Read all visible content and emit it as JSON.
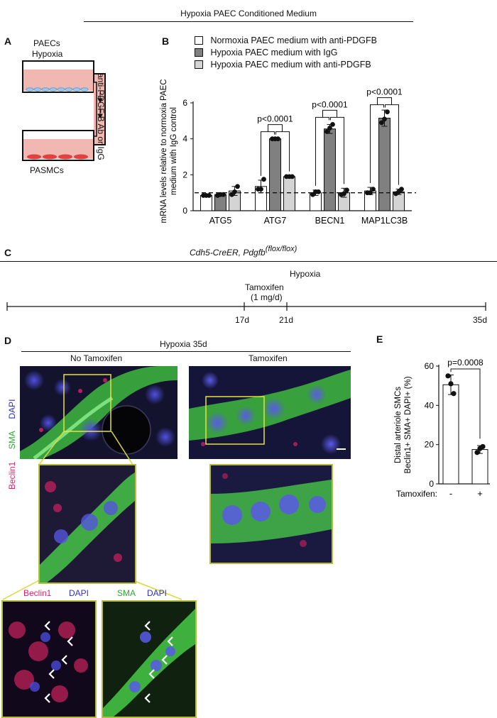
{
  "header_title": "Hypoxia PAEC Conditioned Medium",
  "panelA": {
    "letter": "A",
    "top_label_1": "PAECs",
    "top_label_2": "Hypoxia",
    "side_label": "anti-PDGF-B Ab or IgG",
    "bottom_label": "PASMCs"
  },
  "panelB": {
    "letter": "B",
    "pvals": [
      "p<0.0001",
      "p<0.0001",
      "p<0.0001"
    ]
  },
  "panelC": {
    "letter": "C",
    "title_main": "Cdh5-CreER, Pdgfb",
    "title_sup": "(flox/flox)",
    "hypoxia": "Hypoxia",
    "tamoxifen": "Tamoxifen",
    "dose": "(1 mg/d)",
    "days": [
      "17d",
      "21d",
      "35d"
    ]
  },
  "panelD": {
    "letter": "D",
    "title": "Hypoxia 35d",
    "col1": "No Tamoxifen",
    "col2": "Tamoxifen",
    "side_dapi": "DAPI",
    "side_sma": "SMA",
    "side_beclin": "Beclin1",
    "inset1_beclin": "Beclin1",
    "inset1_dapi": "DAPI",
    "inset2_sma": "SMA",
    "inset2_dapi": "DAPI"
  },
  "panelE": {
    "letter": "E",
    "pval": "p=0.0008",
    "xlabel": "Tamoxifen:"
  },
  "colors": {
    "green": "#2fd62f",
    "red": "#e0206a",
    "blue": "#4040d8",
    "yellow": "#e8e23a",
    "bar_white": "#ffffff",
    "bar_dark": "#808080",
    "bar_light": "#d4d4d4"
  },
  "chart_data": [
    {
      "type": "bar",
      "categories": [
        "ATG5",
        "ATG7",
        "BECN1",
        "MAP1LC3B"
      ],
      "ylabel": "mRNA levels relative to normoxia PAEC medium with IgG control",
      "ylim": [
        0,
        6
      ],
      "yticks": [
        "0",
        "2",
        "4",
        "6"
      ],
      "reference_line": 1,
      "series": [
        {
          "name": "Normoxia PAEC medium with anti-PDGFB",
          "values": [
            0.85,
            1.35,
            1.0,
            1.1
          ],
          "err": [
            0.05,
            0.35,
            0.15,
            0.2
          ],
          "points": [
            [
              0.85,
              0.85,
              0.85
            ],
            [
              1.2,
              1.2,
              1.75
            ],
            [
              0.9,
              1.05,
              1.05
            ],
            [
              1.0,
              1.0,
              1.2
            ]
          ]
        },
        {
          "name": "Hypoxia PAEC medium with IgG",
          "values": [
            0.9,
            4.0,
            4.55,
            5.15
          ],
          "err": [
            0.05,
            0.05,
            0.25,
            0.45
          ],
          "points": [
            [
              0.85,
              0.9,
              0.9
            ],
            [
              4.0,
              4.0,
              4.0
            ],
            [
              4.4,
              4.6,
              4.8
            ],
            [
              4.9,
              5.1,
              5.5
            ]
          ]
        },
        {
          "name": "Hypoxia PAEC medium with anti-PDGFB",
          "values": [
            1.1,
            1.9,
            1.0,
            1.05
          ],
          "err": [
            0.25,
            0.05,
            0.25,
            0.15
          ],
          "points": [
            [
              0.9,
              1.05,
              1.35
            ],
            [
              1.9,
              1.9,
              1.9
            ],
            [
              0.9,
              0.95,
              1.15
            ],
            [
              0.95,
              1.05,
              1.2
            ]
          ]
        }
      ]
    },
    {
      "type": "bar",
      "categories": [
        "-",
        "+"
      ],
      "ylabel": "Distal arteriole SMCs Beclin1+ SMA+ DAPI+ (%)",
      "ylim": [
        0,
        60
      ],
      "yticks": [
        "0",
        "20",
        "40",
        "60"
      ],
      "values": [
        50.5,
        17.5
      ],
      "err": [
        5,
        2
      ],
      "points": [
        [
          55,
          51,
          46
        ],
        [
          16,
          18,
          19
        ]
      ]
    }
  ]
}
